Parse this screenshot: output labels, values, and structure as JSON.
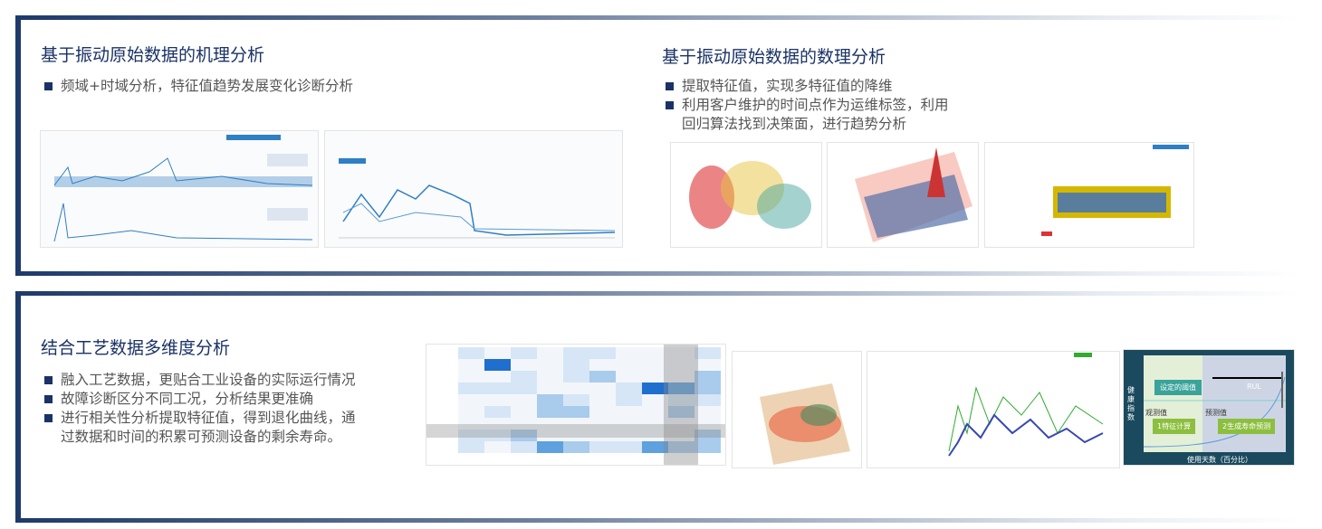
{
  "section1": {
    "left": {
      "title": "基于振动原始数据的机理分析",
      "bullets": [
        "频域+时域分析，特征值趋势发展变化诊断分析"
      ]
    },
    "right": {
      "title": "基于振动原始数据的数理分析",
      "bullets": [
        "提取特征值，实现多特征值的降维",
        "利用客户维护的时间点作为运维标签，利用",
        "回归算法找到决策面，进行趋势分析"
      ]
    }
  },
  "section2": {
    "title": "结合工艺数据多维度分析",
    "bullets": [
      "融入工艺数据，更贴合工业设备的实际运行情况",
      "故障诊断区分不同工况，分析结果更准确",
      "进行相关性分析提取特征值，得到退化曲线，通",
      "过数据和时间的积累可预测设备的剩余寿命。"
    ],
    "rul_figure": {
      "threshold": "设定的阈值",
      "rul": "RUL",
      "observed": "观测值",
      "predicted": "预测值",
      "step1": "1特征计算",
      "step2": "2生成寿命预测",
      "ylabel": "健康指数",
      "xlabel": "使用天数（百分比）"
    }
  },
  "colors": {
    "accent": "#1a3266",
    "chart_blue": "#2f7fc4"
  }
}
